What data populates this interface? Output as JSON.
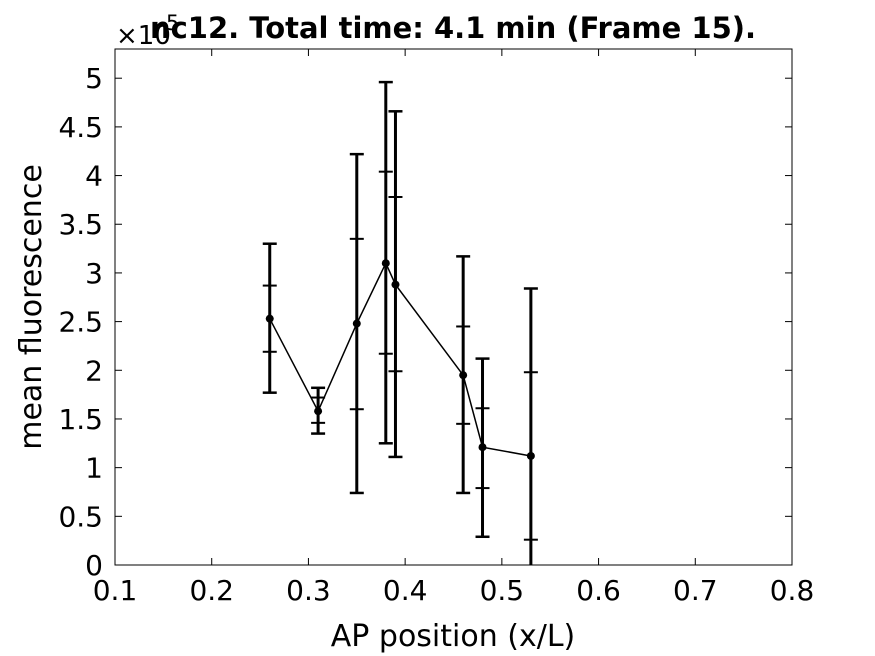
{
  "chart_data": {
    "type": "line",
    "title": "nc12. Total time: 4.1 min (Frame 15).",
    "xlabel": "AP position (x/L)",
    "ylabel": "mean fluorescence",
    "y_exponent_label": "×10",
    "y_exponent_power": "5",
    "xlim": [
      0.1,
      0.8
    ],
    "ylim": [
      0,
      5.3
    ],
    "x_ticks": [
      0.1,
      0.2,
      0.3,
      0.4,
      0.5,
      0.6,
      0.7,
      0.8
    ],
    "x_tick_labels": [
      "0.1",
      "0.2",
      "0.3",
      "0.4",
      "0.5",
      "0.6",
      "0.7",
      "0.8"
    ],
    "y_ticks": [
      0,
      0.5,
      1,
      1.5,
      2,
      2.5,
      3,
      3.5,
      4,
      4.5,
      5
    ],
    "y_tick_labels": [
      "0",
      "0.5",
      "1",
      "1.5",
      "2",
      "2.5",
      "3",
      "3.5",
      "4",
      "4.5",
      "5"
    ],
    "grid": false,
    "color": "#000000",
    "series": [
      {
        "x": [
          0.26,
          0.31,
          0.35,
          0.38,
          0.39,
          0.46,
          0.48,
          0.53
        ],
        "y": [
          2.53,
          1.58,
          2.48,
          3.1,
          2.88,
          1.95,
          1.21,
          1.12
        ],
        "error_outer": [
          [
            1.77,
            3.3
          ],
          [
            1.35,
            1.82
          ],
          [
            0.74,
            4.22
          ],
          [
            1.25,
            4.96
          ],
          [
            1.11,
            4.66
          ],
          [
            0.74,
            3.17
          ],
          [
            0.29,
            2.12
          ],
          [
            0.0,
            2.84
          ]
        ],
        "error_inner": [
          [
            2.19,
            2.87
          ],
          [
            1.46,
            1.72
          ],
          [
            1.6,
            3.35
          ],
          [
            2.17,
            4.04
          ],
          [
            1.99,
            3.78
          ],
          [
            1.45,
            2.45
          ],
          [
            0.79,
            1.61
          ],
          [
            0.26,
            1.98
          ]
        ]
      }
    ]
  }
}
